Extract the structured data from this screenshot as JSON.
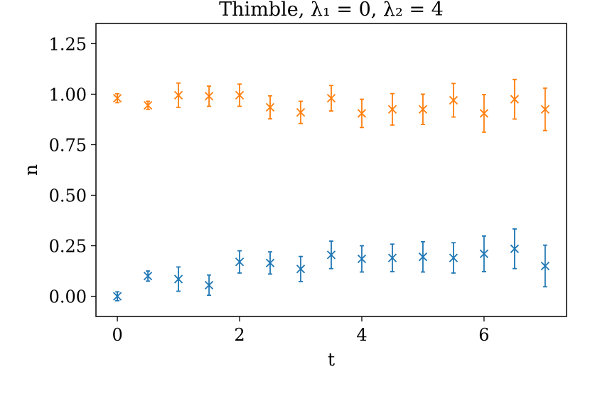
{
  "chart_data": {
    "type": "scatter",
    "title": "Thimble, λ₁ = 0, λ₂ = 4",
    "xlabel": "t",
    "ylabel": "n",
    "xlim": [
      -0.35,
      7.35
    ],
    "ylim": [
      -0.1,
      1.35
    ],
    "xticks": [
      0,
      2,
      4,
      6
    ],
    "yticks": [
      0.0,
      0.25,
      0.5,
      0.75,
      1.0,
      1.25
    ],
    "xtick_labels": [
      "0",
      "2",
      "4",
      "6"
    ],
    "ytick_labels": [
      "0.00",
      "0.25",
      "0.50",
      "0.75",
      "1.00",
      "1.25"
    ],
    "grid": false,
    "marker": "x",
    "series": [
      {
        "color": "#1f77b4",
        "x": [
          0,
          0.5,
          1,
          1.5,
          2,
          2.5,
          3,
          3.5,
          4,
          4.5,
          5,
          5.5,
          6,
          6.5,
          7
        ],
        "y": [
          0.0,
          0.1,
          0.085,
          0.055,
          0.17,
          0.165,
          0.135,
          0.205,
          0.185,
          0.19,
          0.195,
          0.19,
          0.21,
          0.235,
          0.15
        ],
        "yerr": [
          0.022,
          0.025,
          0.06,
          0.05,
          0.055,
          0.055,
          0.062,
          0.068,
          0.065,
          0.068,
          0.075,
          0.075,
          0.088,
          0.098,
          0.103
        ]
      },
      {
        "color": "#ff7f0e",
        "x": [
          0,
          0.5,
          1,
          1.5,
          2,
          2.5,
          3,
          3.5,
          4,
          4.5,
          5,
          5.5,
          6,
          6.5,
          7
        ],
        "y": [
          0.98,
          0.945,
          0.995,
          0.99,
          0.995,
          0.935,
          0.91,
          0.98,
          0.905,
          0.925,
          0.925,
          0.97,
          0.905,
          0.975,
          0.925
        ],
        "yerr": [
          0.022,
          0.02,
          0.06,
          0.05,
          0.055,
          0.057,
          0.055,
          0.063,
          0.07,
          0.078,
          0.075,
          0.083,
          0.093,
          0.098,
          0.105
        ]
      }
    ]
  }
}
